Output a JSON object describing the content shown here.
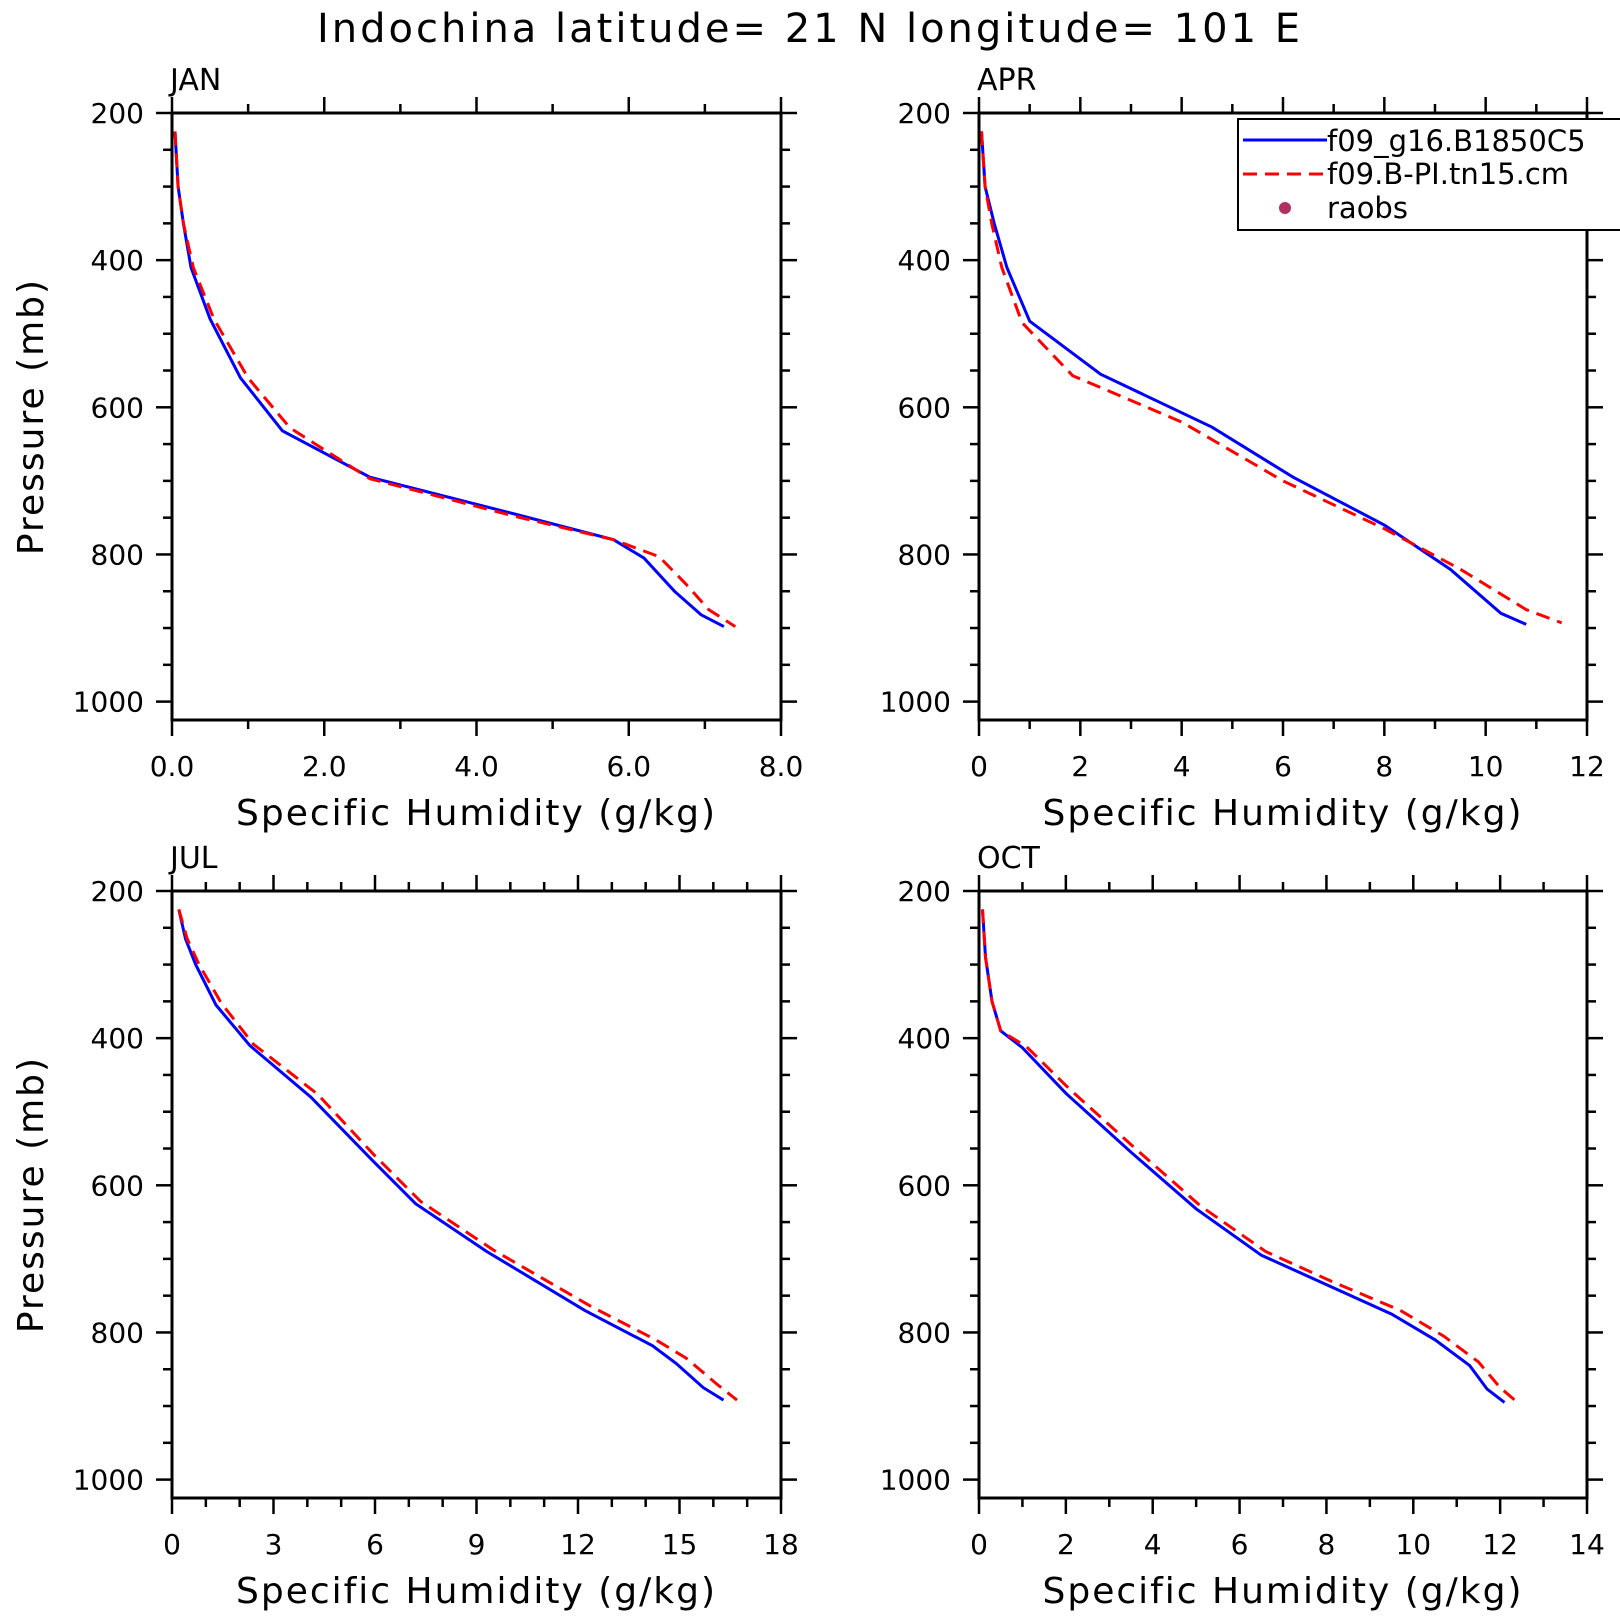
{
  "title": "Indochina  latitude= 21 N longitude= 101 E",
  "legend": {
    "entries": [
      {
        "label": "f09_g16.B1850C5",
        "color": "#0000ff",
        "style": "solid"
      },
      {
        "label": "f09.B-PI.tn15.cm",
        "color": "#ff0000",
        "style": "dashed"
      },
      {
        "label": "raobs",
        "color": "#b03060",
        "style": "marker"
      }
    ]
  },
  "chart_data": [
    {
      "type": "line",
      "panel_label": "JAN",
      "xlabel": "Specific Humidity (g/kg)",
      "ylabel": "Pressure (mb)",
      "xlim": [
        0,
        8
      ],
      "ylim": [
        1025,
        200
      ],
      "xticks": [
        "0.0",
        "2.0",
        "4.0",
        "6.0",
        "8.0"
      ],
      "xtick_values": [
        0,
        2,
        4,
        6,
        8
      ],
      "yticks": [
        "200",
        "400",
        "600",
        "800",
        "1000"
      ],
      "ytick_values": [
        200,
        400,
        600,
        800,
        1000
      ],
      "series": [
        {
          "name": "f09_g16.B1850C5",
          "x": [
            0.04,
            0.08,
            0.15,
            0.25,
            0.5,
            0.9,
            1.45,
            2.6,
            4.5,
            5.8,
            6.2,
            6.6,
            6.95,
            7.25
          ],
          "y": [
            225,
            300,
            350,
            410,
            480,
            560,
            632,
            695,
            745,
            780,
            805,
            850,
            882,
            898
          ]
        },
        {
          "name": "f09.B-PI.tn15.cm",
          "x": [
            0.04,
            0.08,
            0.15,
            0.28,
            0.55,
            1.0,
            1.55,
            2.6,
            4.5,
            5.8,
            6.4,
            6.75,
            7.05,
            7.4
          ],
          "y": [
            225,
            300,
            350,
            410,
            480,
            560,
            628,
            697,
            748,
            780,
            803,
            840,
            875,
            898
          ]
        }
      ]
    },
    {
      "type": "line",
      "panel_label": "APR",
      "xlabel": "Specific Humidity (g/kg)",
      "ylabel": "",
      "xlim": [
        0,
        12
      ],
      "ylim": [
        1025,
        200
      ],
      "xticks": [
        "0",
        "2",
        "4",
        "6",
        "8",
        "10",
        "12"
      ],
      "xtick_values": [
        0,
        2,
        4,
        6,
        8,
        10,
        12
      ],
      "yticks": [
        "200",
        "400",
        "600",
        "800",
        "1000"
      ],
      "ytick_values": [
        200,
        400,
        600,
        800,
        1000
      ],
      "series": [
        {
          "name": "f09_g16.B1850C5",
          "x": [
            0.05,
            0.12,
            0.3,
            0.55,
            1.0,
            2.4,
            4.6,
            6.2,
            8.0,
            9.3,
            10.3,
            10.8
          ],
          "y": [
            225,
            300,
            350,
            410,
            483,
            555,
            627,
            695,
            760,
            820,
            880,
            895
          ]
        },
        {
          "name": "f09.B-PI.tn15.cm",
          "x": [
            0.05,
            0.12,
            0.25,
            0.45,
            0.85,
            1.85,
            4.0,
            6.0,
            8.0,
            9.5,
            10.8,
            11.5
          ],
          "y": [
            225,
            300,
            350,
            410,
            485,
            557,
            620,
            700,
            765,
            820,
            875,
            893
          ]
        }
      ]
    },
    {
      "type": "line",
      "panel_label": "JUL",
      "xlabel": "Specific Humidity (g/kg)",
      "ylabel": "Pressure (mb)",
      "xlim": [
        0,
        18
      ],
      "ylim": [
        1025,
        200
      ],
      "xticks": [
        "0",
        "3",
        "6",
        "9",
        "12",
        "15",
        "18"
      ],
      "xtick_values": [
        0,
        3,
        6,
        9,
        12,
        15,
        18
      ],
      "yticks": [
        "200",
        "400",
        "600",
        "800",
        "1000"
      ],
      "ytick_values": [
        200,
        400,
        600,
        800,
        1000
      ],
      "series": [
        {
          "name": "f09_g16.B1850C5",
          "x": [
            0.2,
            0.4,
            0.7,
            1.3,
            2.3,
            4.1,
            5.9,
            7.2,
            9.3,
            12.2,
            14.2,
            14.9,
            15.7,
            16.3
          ],
          "y": [
            225,
            265,
            300,
            355,
            410,
            480,
            565,
            625,
            690,
            770,
            818,
            842,
            875,
            892
          ]
        },
        {
          "name": "f09.B-PI.tn15.cm",
          "x": [
            0.2,
            0.45,
            0.8,
            1.45,
            2.4,
            4.3,
            6.0,
            7.35,
            9.5,
            12.4,
            14.3,
            15.2,
            16.1,
            16.7
          ],
          "y": [
            225,
            265,
            300,
            352,
            408,
            476,
            560,
            622,
            688,
            765,
            810,
            835,
            870,
            892
          ]
        }
      ]
    },
    {
      "type": "line",
      "panel_label": "OCT",
      "xlabel": "Specific Humidity (g/kg)",
      "ylabel": "",
      "xlim": [
        0,
        14
      ],
      "ylim": [
        1025,
        200
      ],
      "xticks": [
        "0",
        "2",
        "4",
        "6",
        "8",
        "10",
        "12",
        "14"
      ],
      "xtick_values": [
        0,
        2,
        4,
        6,
        8,
        10,
        12,
        14
      ],
      "yticks": [
        "200",
        "400",
        "600",
        "800",
        "1000"
      ],
      "ytick_values": [
        200,
        400,
        600,
        800,
        1000
      ],
      "series": [
        {
          "name": "f09_g16.B1850C5",
          "x": [
            0.08,
            0.15,
            0.3,
            0.5,
            1.0,
            2.0,
            3.5,
            5.0,
            6.5,
            8.0,
            9.5,
            10.5,
            11.3,
            11.7,
            12.1
          ],
          "y": [
            225,
            290,
            350,
            390,
            413,
            475,
            555,
            632,
            695,
            735,
            775,
            810,
            845,
            877,
            895
          ]
        },
        {
          "name": "f09.B-PI.tn15.cm",
          "x": [
            0.08,
            0.15,
            0.3,
            0.5,
            1.1,
            2.1,
            3.6,
            5.1,
            6.6,
            8.1,
            9.7,
            10.7,
            11.5,
            12.0,
            12.4
          ],
          "y": [
            225,
            290,
            350,
            390,
            412,
            470,
            550,
            628,
            690,
            730,
            770,
            805,
            840,
            875,
            895
          ]
        }
      ]
    }
  ]
}
